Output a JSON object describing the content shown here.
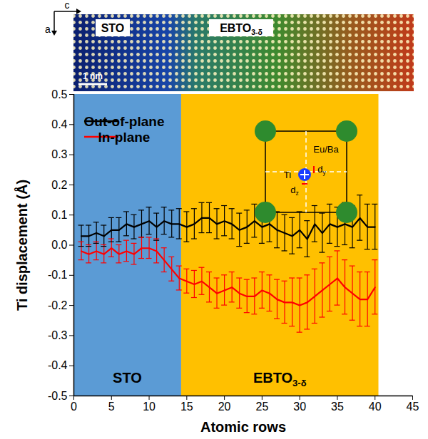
{
  "chart_data": {
    "type": "line",
    "xlabel": "Atomic rows",
    "ylabel": "Ti displacement (Å)",
    "x": [
      1,
      2,
      3,
      4,
      5,
      6,
      7,
      8,
      9,
      10,
      11,
      12,
      13,
      14,
      15,
      16,
      17,
      18,
      19,
      20,
      21,
      22,
      23,
      24,
      25,
      26,
      27,
      28,
      29,
      30,
      31,
      32,
      33,
      34,
      35,
      36,
      37,
      38,
      39,
      40
    ],
    "series": [
      {
        "name": "Out-of-plane",
        "color": "#000000",
        "values": [
          0.03,
          0.03,
          0.04,
          0.03,
          0.05,
          0.05,
          0.07,
          0.06,
          0.07,
          0.08,
          0.06,
          0.08,
          0.07,
          0.07,
          0.06,
          0.07,
          0.09,
          0.09,
          0.07,
          0.08,
          0.07,
          0.05,
          0.06,
          0.08,
          0.06,
          0.07,
          0.05,
          0.04,
          0.03,
          0.05,
          0.02,
          0.07,
          0.04,
          0.07,
          0.06,
          0.07,
          0.06,
          0.09,
          0.06,
          0.06
        ],
        "errors": [
          0.035,
          0.035,
          0.035,
          0.035,
          0.04,
          0.04,
          0.04,
          0.04,
          0.045,
          0.045,
          0.045,
          0.045,
          0.045,
          0.05,
          0.05,
          0.05,
          0.05,
          0.05,
          0.05,
          0.05,
          0.05,
          0.055,
          0.055,
          0.055,
          0.055,
          0.06,
          0.06,
          0.06,
          0.06,
          0.06,
          0.06,
          0.06,
          0.065,
          0.065,
          0.065,
          0.07,
          0.07,
          0.075,
          0.075,
          0.075
        ]
      },
      {
        "name": "In-plane",
        "color": "#ff0000",
        "values": [
          -0.02,
          -0.03,
          -0.02,
          -0.03,
          -0.01,
          -0.03,
          -0.02,
          -0.03,
          -0.01,
          -0.01,
          -0.02,
          -0.05,
          -0.08,
          -0.11,
          -0.12,
          -0.13,
          -0.12,
          -0.14,
          -0.16,
          -0.15,
          -0.14,
          -0.16,
          -0.17,
          -0.17,
          -0.15,
          -0.16,
          -0.18,
          -0.19,
          -0.19,
          -0.2,
          -0.19,
          -0.17,
          -0.15,
          -0.13,
          -0.11,
          -0.14,
          -0.16,
          -0.18,
          -0.18,
          -0.14
        ],
        "errors": [
          0.03,
          0.03,
          0.03,
          0.03,
          0.03,
          0.03,
          0.035,
          0.035,
          0.035,
          0.035,
          0.04,
          0.04,
          0.04,
          0.04,
          0.04,
          0.045,
          0.045,
          0.05,
          0.05,
          0.05,
          0.05,
          0.05,
          0.055,
          0.06,
          0.06,
          0.06,
          0.065,
          0.07,
          0.08,
          0.09,
          0.09,
          0.09,
          0.09,
          0.09,
          0.09,
          0.09,
          0.09,
          0.09,
          0.09,
          0.09
        ]
      }
    ],
    "xlim": [
      0,
      45
    ],
    "xticks": [
      0,
      5,
      10,
      15,
      20,
      25,
      30,
      35,
      40,
      45
    ],
    "ylim": [
      -0.5,
      0.5
    ],
    "yticks": [
      -0.5,
      -0.4,
      -0.3,
      -0.2,
      -0.1,
      {
        "value": 0,
        "label": "0.0"
      },
      0.1,
      0.2,
      0.3,
      0.4,
      0.5
    ],
    "legend": "upper left",
    "regions": [
      {
        "label": {
          "text": "STO"
        },
        "from": 0,
        "to": 14.3,
        "color": "#5b9bd5"
      },
      {
        "label": {
          "text": "EBTO",
          "sub": "3-δ"
        },
        "from": 14.3,
        "to": 40.5,
        "color": "#ffc000"
      }
    ],
    "image": {
      "axes": [
        "c",
        "a"
      ],
      "labels": [
        {
          "text": "STO"
        },
        {
          "text": "EBTO",
          "sub": "3-δ"
        }
      ],
      "scale_bar": "1 nm"
    },
    "inset": {
      "site": "Eu/Ba",
      "center": "Ti",
      "displacements": [
        {
          "text": "d",
          "sub": "y"
        },
        {
          "text": "d",
          "sub": "z"
        }
      ]
    }
  }
}
